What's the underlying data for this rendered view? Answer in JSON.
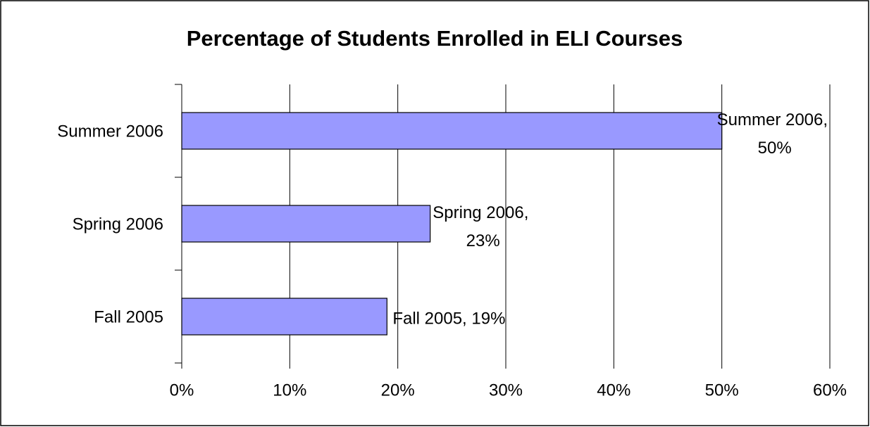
{
  "chart_data": {
    "type": "barh",
    "title": "Percentage of Students Enrolled in ELI Courses",
    "categories": [
      "Fall 2005",
      "Spring 2006",
      "Summer 2006"
    ],
    "values": [
      19,
      23,
      50
    ],
    "value_labels": [
      "Fall 2005, 19%",
      "Spring 2006, 23%",
      "Summer 2006, 50%"
    ],
    "color": "#9999ff",
    "xlim": [
      0,
      60
    ],
    "xticks": [
      {
        "value": 0,
        "label": "0%"
      },
      {
        "value": 10,
        "label": "10%"
      },
      {
        "value": 20,
        "label": "20%"
      },
      {
        "value": 30,
        "label": "30%"
      },
      {
        "value": 40,
        "label": "40%"
      },
      {
        "value": 50,
        "label": "50%"
      },
      {
        "value": 60,
        "label": "60%"
      }
    ],
    "grid": true
  }
}
